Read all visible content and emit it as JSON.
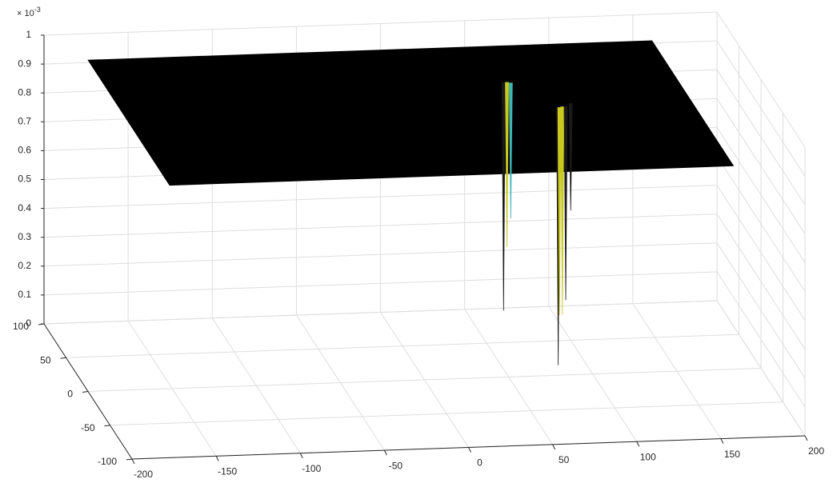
{
  "chart_data": {
    "type": "surface",
    "title": "",
    "xlabel": "",
    "ylabel": "",
    "zlabel": "",
    "z_exponent_label": "×10⁻³",
    "z_exponent_base": "× 10",
    "z_exponent_power": "-3",
    "x_ticks": [
      "-200",
      "-150",
      "-100",
      "-50",
      "0",
      "50",
      "100",
      "150",
      "200"
    ],
    "y_ticks": [
      "-100",
      "-50",
      "0",
      "50",
      "100"
    ],
    "z_ticks": [
      "0",
      "0.1",
      "0.2",
      "0.3",
      "0.4",
      "0.5",
      "0.6",
      "0.7",
      "0.8",
      "0.9",
      "1"
    ],
    "xlim": [
      -200,
      200
    ],
    "ylim": [
      -100,
      100
    ],
    "zlim": [
      0,
      0.001
    ],
    "grid": true,
    "surface_color": "#000000",
    "surface_plateau_z": 0.00092,
    "surface_extent": {
      "x": [
        -175,
        160
      ],
      "y": [
        -90,
        95
      ]
    },
    "spikes": [
      {
        "x": 58,
        "y": 42,
        "z_min": 0.00013,
        "color": "#1a1a1a"
      },
      {
        "x": 60,
        "y": 42,
        "z_min": 0.00035,
        "color": "#c8c81e"
      },
      {
        "x": 62,
        "y": 41,
        "z_min": 0.00045,
        "color": "#3cb4b4"
      },
      {
        "x": 80,
        "y": 2,
        "z_min": 3e-05,
        "color": "#1a1a1a"
      },
      {
        "x": 81,
        "y": 3,
        "z_min": 0.0002,
        "color": "#c8c81e"
      },
      {
        "x": 83,
        "y": 4,
        "z_min": 0.0002,
        "color": "#c8c81e"
      },
      {
        "x": 85,
        "y": 4,
        "z_min": 0.00025,
        "color": "#1a1a1a"
      },
      {
        "x": 89,
        "y": 8,
        "z_min": 0.00055,
        "color": "#1a1a1a"
      }
    ]
  }
}
